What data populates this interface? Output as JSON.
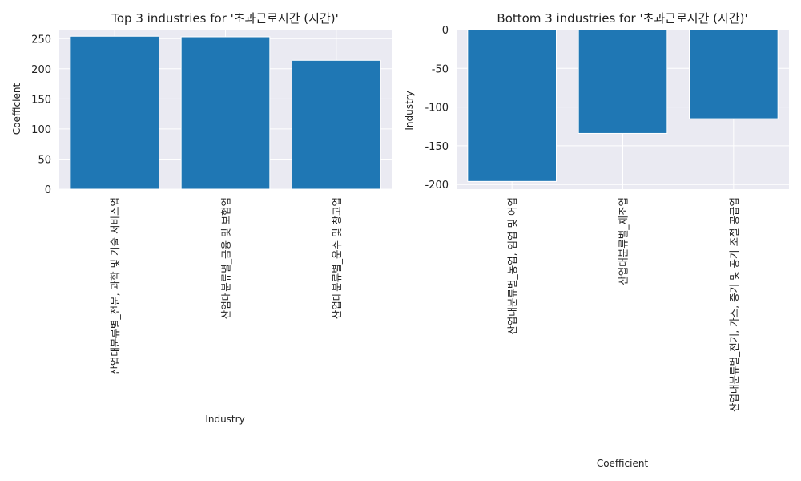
{
  "colors": {
    "bar": "#1f77b4",
    "plot_bg": "#eaeaf2",
    "grid": "#ffffff"
  },
  "chart_data": [
    {
      "type": "bar",
      "title": "Top 3 industries for '초과근로시간 (시간)'",
      "xlabel": "Industry",
      "ylabel": "Coefficient",
      "categories": [
        "산업대분류별_전문, 과학 및 기술 서비스업",
        "산업대분류별_금융 및 보험업",
        "산업대분류별_운수 및 창고업"
      ],
      "values": [
        254,
        253,
        214
      ],
      "ylim": [
        0,
        265
      ],
      "yticks": [
        0,
        50,
        100,
        150,
        200,
        250
      ],
      "grid": true
    },
    {
      "type": "bar",
      "title": "Bottom 3 industries for '초과근로시간 (시간)'",
      "xlabel": "Coefficient",
      "ylabel": "Industry",
      "categories": [
        "산업대분류별_농업, 임업 및 어업",
        "산업대분류별_제조업",
        "산업대분류별_전기, 가스, 증기 및 공기 조절 공급업"
      ],
      "values": [
        -196,
        -134,
        -115
      ],
      "ylim": [
        -206,
        0
      ],
      "yticks": [
        0,
        -50,
        -100,
        -150,
        -200
      ],
      "grid": true
    }
  ]
}
